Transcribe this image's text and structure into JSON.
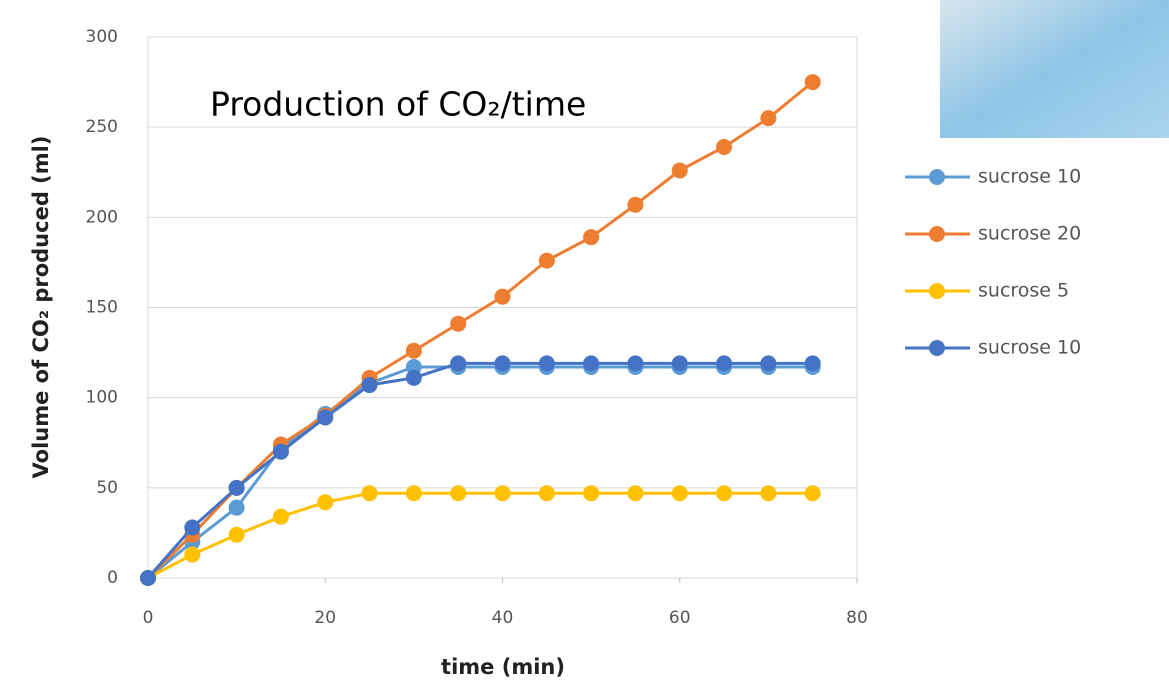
{
  "chart_data": {
    "type": "line",
    "title": "Production of CO₂/time",
    "x_label": "time (min)",
    "y_label": "Volume of CO₂ produced (ml)",
    "x": [
      0,
      5,
      10,
      15,
      20,
      25,
      30,
      35,
      40,
      45,
      50,
      55,
      60,
      65,
      70,
      75
    ],
    "series": [
      {
        "name": "sucrose 10",
        "color": "#5b9bd5",
        "values": [
          0,
          20,
          39,
          72,
          91,
          108,
          117,
          117,
          117,
          117,
          117,
          117,
          117,
          117,
          117,
          117
        ]
      },
      {
        "name": "sucrose 20",
        "color": "#ed7d31",
        "values": [
          0,
          24,
          50,
          74,
          90,
          111,
          126,
          141,
          156,
          176,
          189,
          207,
          226,
          239,
          255,
          275
        ]
      },
      {
        "name": "sucrose 5",
        "color": "#ffc000",
        "values": [
          0,
          13,
          24,
          34,
          42,
          47,
          47,
          47,
          47,
          47,
          47,
          47,
          47,
          47,
          47,
          47
        ]
      },
      {
        "name": "sucrose 10",
        "color": "#4472c4",
        "values": [
          0,
          28,
          50,
          70,
          89,
          107,
          111,
          119,
          119,
          119,
          119,
          119,
          119,
          119,
          119,
          119
        ]
      }
    ],
    "xlim": [
      0,
      80
    ],
    "xticks": [
      0,
      20,
      40,
      60,
      80
    ],
    "ylim": [
      0,
      300
    ],
    "yticks": [
      0,
      50,
      100,
      150,
      200,
      250,
      300
    ],
    "grid": true,
    "legend": "right"
  }
}
